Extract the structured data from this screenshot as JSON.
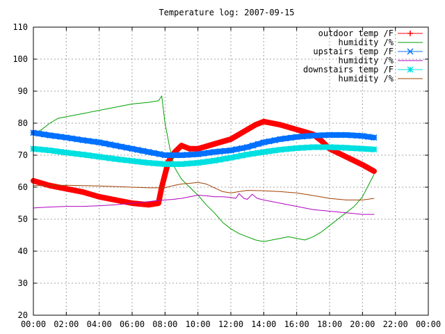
{
  "chart_data": {
    "type": "line",
    "title": "Temperature log: 2007-09-15",
    "xlabel": "",
    "ylabel": "",
    "ylim": [
      20,
      110
    ],
    "xlim": [
      0,
      24
    ],
    "grid": true,
    "legend_position": "top-right",
    "x_ticks": [
      0,
      2,
      4,
      6,
      8,
      10,
      12,
      14,
      16,
      18,
      20,
      22,
      24
    ],
    "x_tick_labels": [
      "00:00",
      "02:00",
      "04:00",
      "06:00",
      "08:00",
      "10:00",
      "12:00",
      "14:00",
      "16:00",
      "18:00",
      "20:00",
      "22:00",
      "00:00"
    ],
    "y_ticks": [
      20,
      30,
      40,
      50,
      60,
      70,
      80,
      90,
      100,
      110
    ],
    "y_tick_labels": [
      "20",
      "30",
      "40",
      "50",
      "60",
      "70",
      "80",
      "90",
      "100",
      "110"
    ],
    "series": [
      {
        "name": "outdoor temp /F",
        "color": "#ff0000",
        "marker": "plus",
        "width": "thick",
        "x": [
          0,
          1,
          2,
          3,
          4,
          5,
          6,
          7,
          7.6,
          7.8,
          8.2,
          8.6,
          9,
          9.5,
          10,
          11,
          12,
          13,
          13.5,
          14,
          14.5,
          15,
          16,
          17,
          17.5,
          18,
          19,
          20,
          20.7
        ],
        "y": [
          62,
          60.5,
          59.5,
          58.5,
          57,
          56,
          55,
          54.5,
          55,
          60,
          68,
          71,
          73,
          72,
          72,
          73.5,
          75,
          78,
          79.5,
          80.5,
          80,
          79.5,
          78,
          76.5,
          74.5,
          72,
          69.5,
          67,
          65
        ]
      },
      {
        "name": "humidity /%",
        "color": "#00a000",
        "marker": "none",
        "width": "thin",
        "x": [
          0,
          0.5,
          1,
          1.5,
          2,
          3,
          4,
          5,
          6,
          7,
          7.6,
          7.8,
          8,
          8.3,
          8.6,
          9,
          9.5,
          10,
          10.5,
          11,
          11.5,
          12,
          12.5,
          13,
          13.5,
          14,
          14.5,
          15,
          15.5,
          16,
          16.5,
          17,
          17.5,
          18,
          18.5,
          19,
          19.5,
          20,
          20.7
        ],
        "y": [
          76.5,
          78,
          80,
          81.5,
          82,
          83,
          84,
          85,
          86,
          86.5,
          87,
          88.5,
          80,
          72,
          66,
          62.5,
          60,
          57.5,
          54.5,
          52,
          49,
          47,
          45.5,
          44.5,
          43.5,
          43,
          43.5,
          44,
          44.5,
          44,
          43.5,
          44.5,
          46,
          48,
          50,
          52,
          54,
          57,
          64
        ]
      },
      {
        "name": "upstairs temp /F",
        "color": "#0070ff",
        "marker": "x",
        "width": "thick",
        "x": [
          0,
          1,
          2,
          3,
          4,
          5,
          6,
          7,
          8,
          9,
          10,
          11,
          12,
          13,
          14,
          15,
          16,
          17,
          18,
          19,
          20,
          20.7
        ],
        "y": [
          77,
          76.2,
          75.5,
          74.7,
          74,
          73,
          72,
          71,
          70,
          70,
          70.3,
          71,
          71.5,
          72.5,
          74,
          75,
          75.7,
          76.1,
          76.3,
          76.3,
          76,
          75.5
        ]
      },
      {
        "name": "humidity /%",
        "color": "#b000c0",
        "marker": "none",
        "width": "thin",
        "x": [
          0,
          1,
          2,
          3,
          4,
          5,
          6,
          7,
          7.5,
          8,
          8.5,
          9,
          9.5,
          10,
          10.5,
          11,
          11.5,
          12,
          12.3,
          12.5,
          12.8,
          13,
          13.3,
          13.6,
          14,
          15,
          16,
          17,
          18,
          19,
          20,
          20.7
        ],
        "y": [
          53.5,
          53.8,
          54,
          54,
          54.2,
          54.5,
          55,
          55.5,
          55.8,
          56,
          56.2,
          56.5,
          57,
          57.5,
          57.3,
          57,
          57,
          56.8,
          56.5,
          58,
          56.5,
          56.2,
          57.8,
          56.5,
          56,
          55,
          54,
          53,
          52.5,
          52,
          51.5,
          51.5
        ]
      },
      {
        "name": "downstairs temp /F",
        "color": "#00e0e0",
        "marker": "star",
        "width": "thick",
        "x": [
          0,
          1,
          2,
          3,
          4,
          5,
          6,
          7,
          8,
          9,
          10,
          11,
          12,
          13,
          14,
          15,
          16,
          17,
          18,
          19,
          20,
          20.7
        ],
        "y": [
          72,
          71.5,
          70.8,
          70.2,
          69.5,
          68.8,
          68.2,
          67.6,
          67.2,
          67.2,
          67.6,
          68.3,
          69.2,
          70.2,
          71,
          71.7,
          72.2,
          72.5,
          72.5,
          72.3,
          72,
          71.8
        ]
      },
      {
        "name": "humidity /%",
        "color": "#a04000",
        "marker": "none",
        "width": "thin",
        "x": [
          0,
          1,
          2,
          3,
          4,
          5,
          6,
          7,
          8,
          8.5,
          9,
          9.5,
          10,
          10.5,
          11,
          11.5,
          12,
          12.5,
          13,
          14,
          15,
          16,
          17,
          18,
          19,
          20,
          20.7
        ],
        "y": [
          60.5,
          60.5,
          60.6,
          60.5,
          60.4,
          60.2,
          60,
          59.8,
          59.8,
          60.5,
          61,
          61.2,
          61.5,
          61,
          59.8,
          58.6,
          58.2,
          58.6,
          59,
          58.9,
          58.6,
          58.2,
          57.4,
          56.5,
          56,
          56,
          56.5
        ]
      }
    ]
  }
}
